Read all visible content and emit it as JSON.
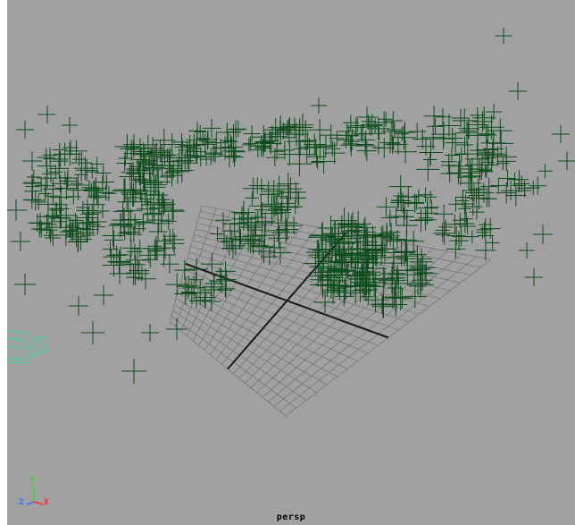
{
  "viewport": {
    "camera_name": "persp",
    "background_color": "#a1a1a1",
    "grid_color": "#6b6b6b",
    "particle_color": "#0b4d1a",
    "camera_icon_color": "#3fdc9a"
  },
  "axis_indicator": {
    "y_label": "Y",
    "z_label": "Z",
    "x_label": "X",
    "y_color": "#2fdf2f",
    "z_color": "#3f6fff",
    "x_color": "#ff2a2a"
  },
  "icons": {
    "camera": "camera-icon",
    "axis": "axis-indicator-icon",
    "locator": "locator-icon"
  }
}
